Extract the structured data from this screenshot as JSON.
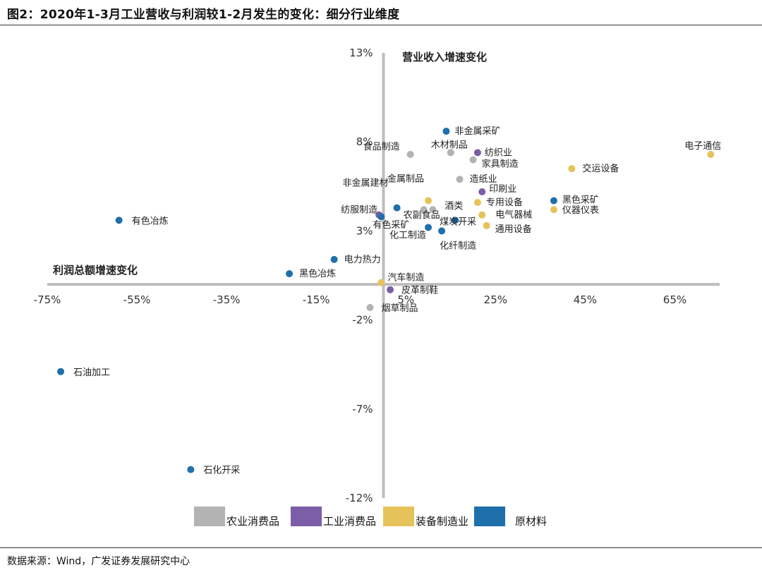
{
  "figure_title": "图2：2020年1-3月工业营收与利润较1-2月发生的变化：细分行业维度",
  "source": "数据来源：Wind，广发证券发展研究中心",
  "chart_data": {
    "type": "scatter",
    "x_axis_title": "利润总额增速变化",
    "y_axis_title": "营业收入增速变化",
    "xlim": [
      -75,
      75
    ],
    "ylim": [
      -12,
      13
    ],
    "x_ticks": [
      "-75%",
      "-55%",
      "-35%",
      "-15%",
      "5%",
      "25%",
      "45%",
      "65%"
    ],
    "x_tick_values": [
      -75,
      -55,
      -35,
      -15,
      5,
      25,
      45,
      65
    ],
    "y_ticks": [
      "13%",
      "8%",
      "3%",
      "-2%",
      "-7%",
      "-12%"
    ],
    "y_tick_values": [
      13,
      8,
      3,
      -2,
      -7,
      -12
    ],
    "grid": false,
    "legend_position": "bottom",
    "categories": [
      {
        "name": "农业消费品",
        "color": "#b3b3b3"
      },
      {
        "name": "工业消费品",
        "color": "#7b5ea7"
      },
      {
        "name": "装备制造业",
        "color": "#e6c25a"
      },
      {
        "name": "原材料",
        "color": "#1f6fab"
      }
    ],
    "points": [
      {
        "label": "非金属采矿",
        "x": 14,
        "y": 8.6,
        "group": 3
      },
      {
        "label": "食品制造",
        "x": 6,
        "y": 7.3,
        "group": 0
      },
      {
        "label": "木材制品",
        "x": 15,
        "y": 7.4,
        "group": 0
      },
      {
        "label": "纺织业",
        "x": 21,
        "y": 7.4,
        "group": 1
      },
      {
        "label": "家具制造",
        "x": 20,
        "y": 7.0,
        "group": 0
      },
      {
        "label": "电子通信",
        "x": 73,
        "y": 7.3,
        "group": 2
      },
      {
        "label": "交运设备",
        "x": 42,
        "y": 6.5,
        "group": 2
      },
      {
        "label": "造纸业",
        "x": 17,
        "y": 5.9,
        "group": 0
      },
      {
        "label": "印刷业",
        "x": 22,
        "y": 5.2,
        "group": 1
      },
      {
        "label": "非金属建材",
        "x": 3,
        "y": 4.3,
        "group": 3
      },
      {
        "label": "金属制品",
        "x": 10,
        "y": 4.7,
        "group": 2
      },
      {
        "label": "专用设备",
        "x": 21,
        "y": 4.6,
        "group": 2
      },
      {
        "label": "黑色采矿",
        "x": 38,
        "y": 4.7,
        "group": 3
      },
      {
        "label": "仪器仪表",
        "x": 38,
        "y": 4.2,
        "group": 2
      },
      {
        "label": "纺服制造",
        "x": -1,
        "y": 3.9,
        "group": 1
      },
      {
        "label": "有色采矿",
        "x": -0.5,
        "y": 3.8,
        "group": 3
      },
      {
        "label": "农副食品",
        "x": 9,
        "y": 4.2,
        "group": 0
      },
      {
        "label": "酒类",
        "x": 11,
        "y": 4.2,
        "group": 0
      },
      {
        "label": "电气器械",
        "x": 22,
        "y": 3.9,
        "group": 2
      },
      {
        "label": "化工制造",
        "x": 10,
        "y": 3.2,
        "group": 3
      },
      {
        "label": "煤炭开采",
        "x": 16,
        "y": 3.6,
        "group": 3
      },
      {
        "label": "通用设备",
        "x": 23,
        "y": 3.3,
        "group": 2
      },
      {
        "label": "化纤制造",
        "x": 13,
        "y": 3.0,
        "group": 3
      },
      {
        "label": "有色冶炼",
        "x": -59,
        "y": 3.6,
        "group": 3
      },
      {
        "label": "电力热力",
        "x": -11,
        "y": 1.4,
        "group": 3
      },
      {
        "label": "黑色冶炼",
        "x": -21,
        "y": 0.6,
        "group": 3
      },
      {
        "label": "汽车制造",
        "x": -0.5,
        "y": 0.1,
        "group": 2
      },
      {
        "label": "皮革制鞋",
        "x": 1.5,
        "y": -0.3,
        "group": 1
      },
      {
        "label": "烟草制品",
        "x": -3,
        "y": -1.3,
        "group": 0
      },
      {
        "label": "石油加工",
        "x": -72,
        "y": -4.9,
        "group": 3
      },
      {
        "label": "石化开采",
        "x": -43,
        "y": -10.4,
        "group": 3
      }
    ]
  }
}
